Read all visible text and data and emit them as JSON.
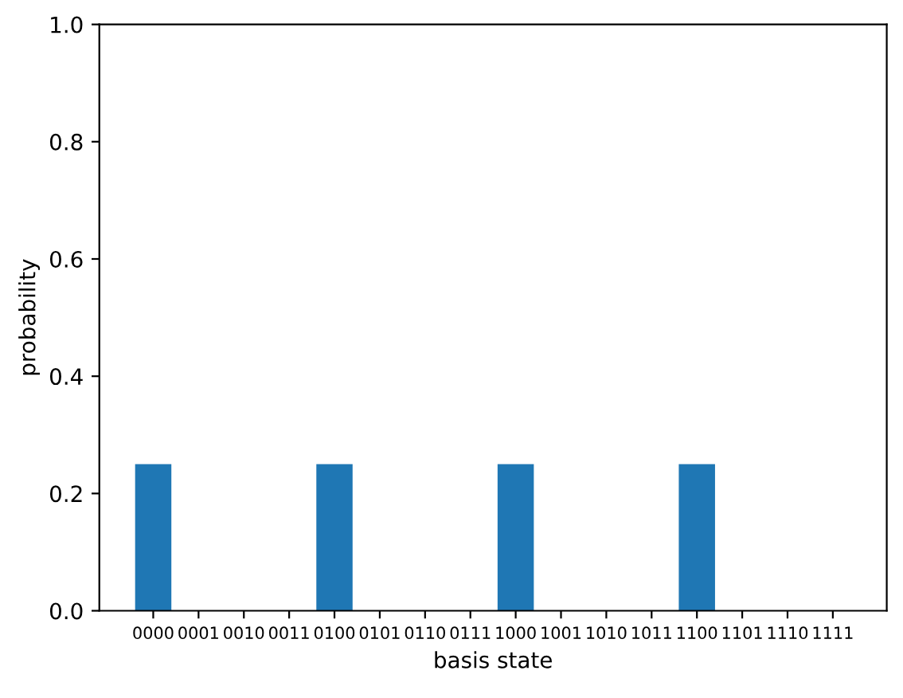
{
  "chart_data": {
    "type": "bar",
    "xlabel": "basis state",
    "ylabel": "probability",
    "categories": [
      "0000",
      "0001",
      "0010",
      "0011",
      "0100",
      "0101",
      "0110",
      "0111",
      "1000",
      "1001",
      "1010",
      "1011",
      "1100",
      "1101",
      "1110",
      "1111"
    ],
    "values": [
      0.25,
      0,
      0,
      0,
      0.25,
      0,
      0,
      0,
      0.25,
      0,
      0,
      0,
      0.25,
      0,
      0,
      0
    ],
    "color": "#1f77b4",
    "ylim": [
      0,
      1
    ],
    "yticks": [
      {
        "value": 0,
        "label": "0.0"
      },
      0.2,
      0.4,
      0.6,
      0.8,
      {
        "value": 1,
        "label": "1.0"
      }
    ],
    "grid": false
  }
}
